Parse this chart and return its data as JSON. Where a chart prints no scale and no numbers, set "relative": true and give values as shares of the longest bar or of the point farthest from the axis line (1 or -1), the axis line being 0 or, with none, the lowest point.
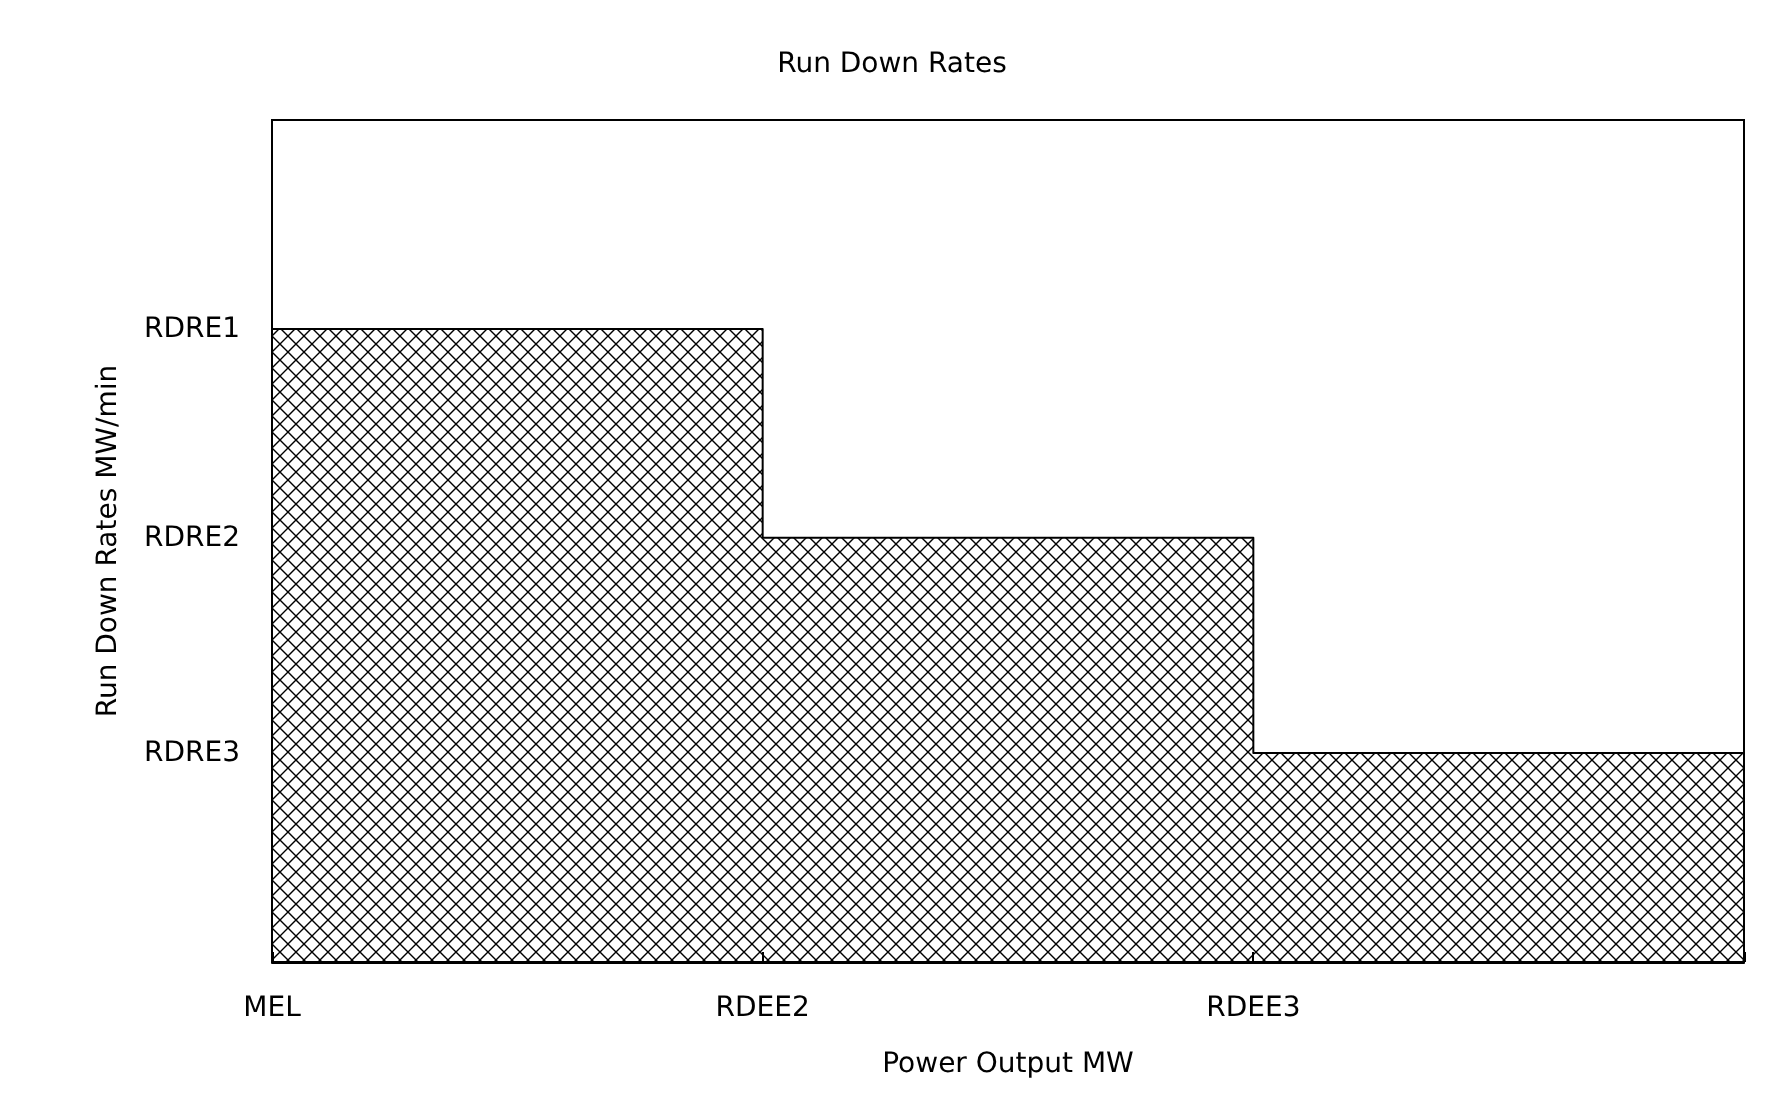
{
  "chart_data": {
    "type": "area",
    "title": "Run Down Rates",
    "xlabel": "Power Output MW",
    "ylabel": "Run Down Rates MW/min",
    "categories": [
      "MEL",
      "RDEE2",
      "RDEE3",
      null
    ],
    "relative": true,
    "series": [
      {
        "color": "#000000",
        "values": [
          1,
          0.67,
          0.33,
          0.33
        ]
      }
    ],
    "annotations": [
      "RDRE1",
      "RDRE2",
      "RDRE3"
    ],
    "grid": false
  }
}
